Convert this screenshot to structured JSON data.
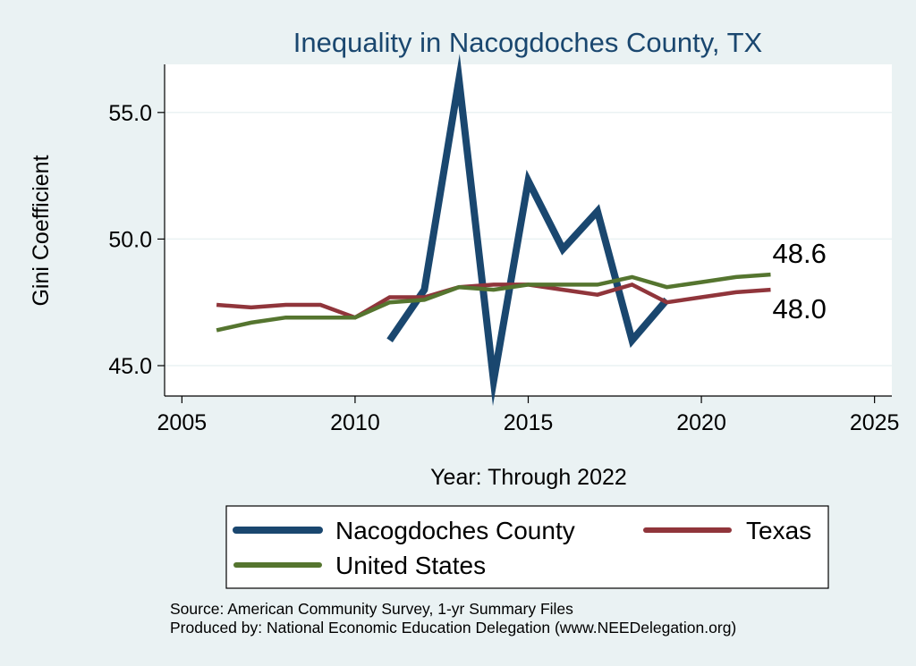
{
  "chart_data": {
    "type": "line",
    "title": "Inequality in Nacogdoches County, TX",
    "xlabel": "Year: Through 2022",
    "ylabel": "Gini Coefficient",
    "xlim": [
      2004.5,
      2025.5
    ],
    "ylim": [
      43.8,
      56.9
    ],
    "x_ticks": [
      2005,
      2010,
      2015,
      2020,
      2025
    ],
    "x_tick_labels": [
      "2005",
      "2010",
      "2015",
      "2020",
      "2025"
    ],
    "y_ticks": [
      45,
      50,
      55
    ],
    "y_tick_labels": [
      "45.0",
      "50.0",
      "55.0"
    ],
    "grid": true,
    "series": [
      {
        "name": "Nacogdoches County",
        "color": "#1a476f",
        "x": [
          2011,
          2012,
          2013,
          2014,
          2015,
          2016,
          2017,
          2018,
          2019
        ],
        "values": [
          46.0,
          48.0,
          56.3,
          44.4,
          52.3,
          49.6,
          51.1,
          46.0,
          47.6
        ]
      },
      {
        "name": "Texas",
        "color": "#90353b",
        "x": [
          2006,
          2007,
          2008,
          2009,
          2010,
          2011,
          2012,
          2013,
          2014,
          2015,
          2016,
          2017,
          2018,
          2019,
          2020,
          2021,
          2022
        ],
        "values": [
          47.4,
          47.3,
          47.4,
          47.4,
          46.9,
          47.7,
          47.7,
          48.1,
          48.2,
          48.2,
          48.0,
          47.8,
          48.2,
          47.5,
          47.7,
          47.9,
          48.0
        ]
      },
      {
        "name": "United States",
        "color": "#55752f",
        "x": [
          2006,
          2007,
          2008,
          2009,
          2010,
          2011,
          2012,
          2013,
          2014,
          2015,
          2016,
          2017,
          2018,
          2019,
          2020,
          2021,
          2022
        ],
        "values": [
          46.4,
          46.7,
          46.9,
          46.9,
          46.9,
          47.5,
          47.6,
          48.1,
          48.0,
          48.2,
          48.2,
          48.2,
          48.5,
          48.1,
          48.3,
          48.5,
          48.6
        ]
      }
    ],
    "end_labels": [
      {
        "series": "United States",
        "text": "48.6"
      },
      {
        "series": "Texas",
        "text": "48.0"
      }
    ],
    "legend": {
      "placement": "bottom",
      "items": [
        "Nacogdoches County",
        "Texas",
        "United States"
      ]
    },
    "notes": [
      "Source: American Community Survey, 1-yr Summary Files",
      "Produced by: National Economic Education Delegation (www.NEEDelegation.org)"
    ],
    "colors": {
      "title": "#1a476f",
      "background": "#eaf2f3",
      "plot_background": "#ffffff",
      "grid": "#eaf2f3"
    }
  }
}
